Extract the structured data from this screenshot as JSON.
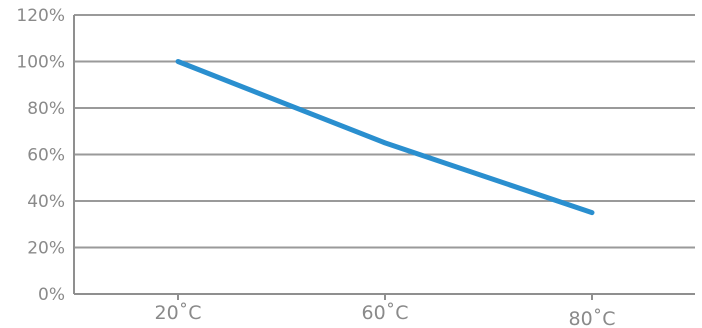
{
  "chart_data": {
    "type": "line",
    "categories": [
      "20˚C",
      "60˚C",
      "80˚C"
    ],
    "values": [
      100,
      65,
      35
    ],
    "title": "",
    "xlabel": "",
    "ylabel": "",
    "ylim": [
      0,
      120
    ],
    "y_ticks": [
      0,
      20,
      40,
      60,
      80,
      100,
      120
    ],
    "y_tick_labels": [
      "0%",
      "20%",
      "40%",
      "60%",
      "80%",
      "100%",
      "120%"
    ],
    "grid": true,
    "legend": "none",
    "colors": {
      "series": "#2a8fcf",
      "grid": "#9a9a9a",
      "text": "#8a8a8a"
    }
  }
}
